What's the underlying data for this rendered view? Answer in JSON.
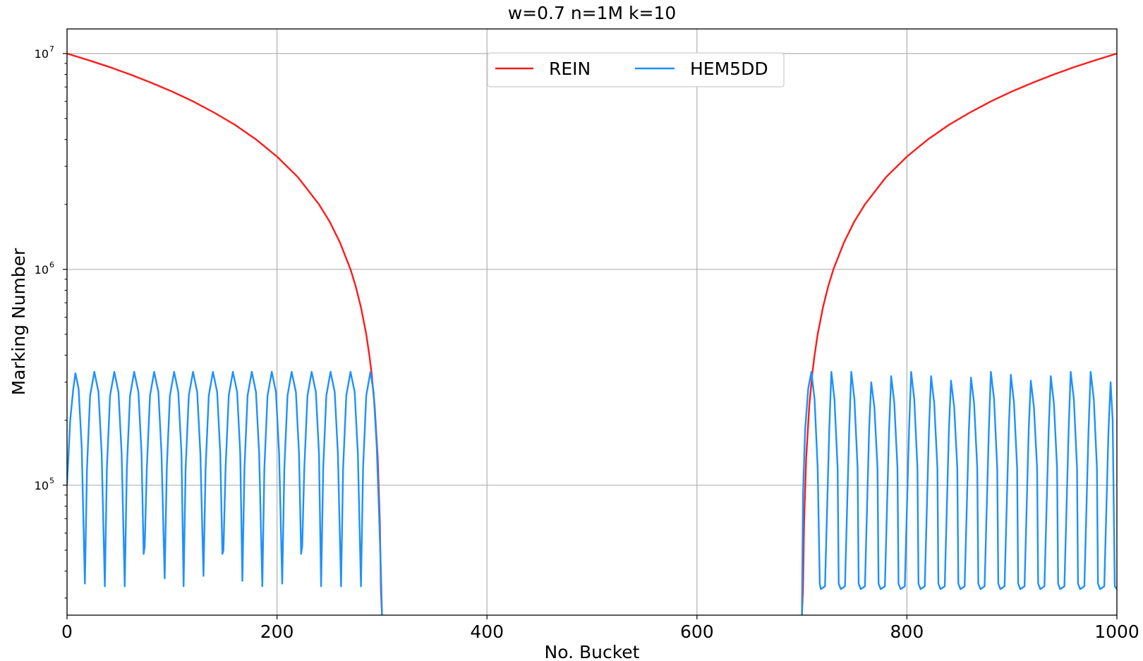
{
  "chart_data": {
    "type": "line",
    "title": "w=0.7 n=1M k=10",
    "xlabel": "No. Bucket",
    "ylabel": "Marking Number",
    "xlim": [
      0,
      1000
    ],
    "ylim": [
      25000,
      13000000
    ],
    "yscale": "log",
    "grid": true,
    "legend": {
      "position": "top-center",
      "entries": [
        "REIN",
        "HEM5DD"
      ]
    },
    "x_ticks": [
      {
        "value": 0,
        "label": "0"
      },
      {
        "value": 200,
        "label": "200"
      },
      {
        "value": 400,
        "label": "400"
      },
      {
        "value": 600,
        "label": "600"
      },
      {
        "value": 800,
        "label": "800"
      },
      {
        "value": 1000,
        "label": "1000"
      }
    ],
    "y_ticks": [
      {
        "value": 100000,
        "base": "10",
        "exp": "5"
      },
      {
        "value": 1000000,
        "base": "10",
        "exp": "6"
      },
      {
        "value": 10000000,
        "base": "10",
        "exp": "7"
      }
    ],
    "series": [
      {
        "name": "REIN",
        "color": "#ff1a1a",
        "segments": [
          [
            [
              0,
              10000000
            ],
            [
              20,
              9330000
            ],
            [
              40,
              8670000
            ],
            [
              60,
              8000000
            ],
            [
              80,
              7330000
            ],
            [
              100,
              6670000
            ],
            [
              120,
              6000000
            ],
            [
              140,
              5330000
            ],
            [
              160,
              4670000
            ],
            [
              180,
              4000000
            ],
            [
              200,
              3330000
            ],
            [
              220,
              2670000
            ],
            [
              240,
              2000000
            ],
            [
              250,
              1670000
            ],
            [
              260,
              1330000
            ],
            [
              270,
              1000000
            ],
            [
              275,
              833000
            ],
            [
              280,
              667000
            ],
            [
              285,
              500000
            ],
            [
              288,
              400000
            ],
            [
              290,
              333000
            ],
            [
              293,
              233000
            ],
            [
              296,
              133000
            ],
            [
              298,
              67000
            ],
            [
              299,
              33000
            ],
            [
              300,
              25000
            ]
          ],
          [
            [
              700,
              25000
            ],
            [
              701,
              33000
            ],
            [
              702,
              67000
            ],
            [
              704,
              133000
            ],
            [
              707,
              233000
            ],
            [
              710,
              333000
            ],
            [
              712,
              400000
            ],
            [
              715,
              500000
            ],
            [
              720,
              667000
            ],
            [
              725,
              833000
            ],
            [
              730,
              1000000
            ],
            [
              740,
              1330000
            ],
            [
              750,
              1670000
            ],
            [
              760,
              2000000
            ],
            [
              780,
              2670000
            ],
            [
              800,
              3330000
            ],
            [
              820,
              4000000
            ],
            [
              840,
              4670000
            ],
            [
              860,
              5330000
            ],
            [
              880,
              6000000
            ],
            [
              900,
              6670000
            ],
            [
              920,
              7330000
            ],
            [
              940,
              8000000
            ],
            [
              960,
              8670000
            ],
            [
              980,
              9330000
            ],
            [
              1000,
              10000000
            ]
          ]
        ]
      },
      {
        "name": "HEM5DD",
        "color": "#1e90ff",
        "segments": [
          [
            [
              0,
              100000
            ],
            [
              3,
              200000
            ],
            [
              6,
              280000
            ],
            [
              8,
              330000
            ],
            [
              11,
              280000
            ],
            [
              14,
              150000
            ],
            [
              17,
              35000
            ],
            [
              19,
              120000
            ],
            [
              22,
              260000
            ],
            [
              26,
              335000
            ],
            [
              30,
              270000
            ],
            [
              33,
              140000
            ],
            [
              36,
              34000
            ],
            [
              38,
              120000
            ],
            [
              41,
              260000
            ],
            [
              45,
              335000
            ],
            [
              49,
              270000
            ],
            [
              52,
              140000
            ],
            [
              55,
              34000
            ],
            [
              57,
              120000
            ],
            [
              60,
              260000
            ],
            [
              64,
              335000
            ],
            [
              68,
              270000
            ],
            [
              71,
              140000
            ],
            [
              73,
              48000
            ],
            [
              74,
              52000
            ],
            [
              76,
              120000
            ],
            [
              79,
              260000
            ],
            [
              83,
              335000
            ],
            [
              87,
              270000
            ],
            [
              90,
              140000
            ],
            [
              93,
              37000
            ],
            [
              95,
              120000
            ],
            [
              98,
              260000
            ],
            [
              102,
              335000
            ],
            [
              106,
              270000
            ],
            [
              109,
              140000
            ],
            [
              111,
              34000
            ],
            [
              113,
              120000
            ],
            [
              116,
              260000
            ],
            [
              120,
              335000
            ],
            [
              124,
              270000
            ],
            [
              127,
              140000
            ],
            [
              130,
              38000
            ],
            [
              132,
              120000
            ],
            [
              135,
              260000
            ],
            [
              139,
              335000
            ],
            [
              143,
              270000
            ],
            [
              146,
              140000
            ],
            [
              148,
              48000
            ],
            [
              149,
              50000
            ],
            [
              151,
              120000
            ],
            [
              154,
              260000
            ],
            [
              158,
              335000
            ],
            [
              162,
              270000
            ],
            [
              165,
              140000
            ],
            [
              167,
              36000
            ],
            [
              169,
              120000
            ],
            [
              172,
              260000
            ],
            [
              176,
              335000
            ],
            [
              180,
              270000
            ],
            [
              183,
              140000
            ],
            [
              186,
              34000
            ],
            [
              188,
              120000
            ],
            [
              191,
              260000
            ],
            [
              195,
              335000
            ],
            [
              199,
              270000
            ],
            [
              202,
              140000
            ],
            [
              205,
              35000
            ],
            [
              207,
              120000
            ],
            [
              210,
              260000
            ],
            [
              214,
              335000
            ],
            [
              218,
              270000
            ],
            [
              221,
              140000
            ],
            [
              223,
              48000
            ],
            [
              224,
              52000
            ],
            [
              226,
              120000
            ],
            [
              229,
              260000
            ],
            [
              233,
              335000
            ],
            [
              237,
              270000
            ],
            [
              240,
              140000
            ],
            [
              242,
              34000
            ],
            [
              244,
              120000
            ],
            [
              247,
              260000
            ],
            [
              251,
              335000
            ],
            [
              255,
              270000
            ],
            [
              258,
              140000
            ],
            [
              261,
              34000
            ],
            [
              263,
              120000
            ],
            [
              266,
              260000
            ],
            [
              270,
              335000
            ],
            [
              274,
              270000
            ],
            [
              277,
              140000
            ],
            [
              280,
              34000
            ],
            [
              282,
              120000
            ],
            [
              285,
              260000
            ],
            [
              289,
              335000
            ],
            [
              292,
              270000
            ],
            [
              295,
              150000
            ],
            [
              297,
              80000
            ],
            [
              299,
              40000
            ],
            [
              300,
              25000
            ]
          ],
          [
            [
              700,
              25000
            ],
            [
              701,
              90000
            ],
            [
              703,
              180000
            ],
            [
              706,
              280000
            ],
            [
              709,
              335000
            ],
            [
              712,
              250000
            ],
            [
              715,
              120000
            ],
            [
              717,
              35000
            ],
            [
              718,
              33000
            ],
            [
              722,
              34000
            ],
            [
              726,
              180000
            ],
            [
              728,
              335000
            ],
            [
              731,
              250000
            ],
            [
              734,
              120000
            ],
            [
              735,
              35000
            ],
            [
              737,
              33000
            ],
            [
              741,
              34000
            ],
            [
              745,
              180000
            ],
            [
              747,
              335000
            ],
            [
              750,
              250000
            ],
            [
              753,
              120000
            ],
            [
              754,
              35000
            ],
            [
              756,
              33000
            ],
            [
              760,
              34000
            ],
            [
              764,
              180000
            ],
            [
              766,
              300000
            ],
            [
              769,
              230000
            ],
            [
              772,
              120000
            ],
            [
              773,
              35000
            ],
            [
              775,
              33000
            ],
            [
              779,
              34000
            ],
            [
              783,
              180000
            ],
            [
              785,
              320000
            ],
            [
              788,
              240000
            ],
            [
              791,
              120000
            ],
            [
              792,
              35000
            ],
            [
              794,
              33000
            ],
            [
              798,
              34000
            ],
            [
              802,
              180000
            ],
            [
              804,
              335000
            ],
            [
              807,
              250000
            ],
            [
              810,
              120000
            ],
            [
              811,
              35000
            ],
            [
              813,
              33000
            ],
            [
              817,
              34000
            ],
            [
              821,
              180000
            ],
            [
              823,
              320000
            ],
            [
              826,
              240000
            ],
            [
              829,
              120000
            ],
            [
              830,
              35000
            ],
            [
              832,
              33000
            ],
            [
              836,
              34000
            ],
            [
              840,
              180000
            ],
            [
              842,
              305000
            ],
            [
              845,
              230000
            ],
            [
              848,
              120000
            ],
            [
              849,
              35000
            ],
            [
              851,
              33000
            ],
            [
              855,
              34000
            ],
            [
              859,
              180000
            ],
            [
              861,
              315000
            ],
            [
              864,
              240000
            ],
            [
              867,
              120000
            ],
            [
              868,
              35000
            ],
            [
              870,
              33000
            ],
            [
              874,
              34000
            ],
            [
              878,
              180000
            ],
            [
              880,
              335000
            ],
            [
              883,
              250000
            ],
            [
              886,
              120000
            ],
            [
              887,
              35000
            ],
            [
              889,
              33000
            ],
            [
              893,
              34000
            ],
            [
              897,
              180000
            ],
            [
              899,
              325000
            ],
            [
              902,
              240000
            ],
            [
              905,
              120000
            ],
            [
              906,
              35000
            ],
            [
              908,
              33000
            ],
            [
              912,
              34000
            ],
            [
              916,
              180000
            ],
            [
              918,
              305000
            ],
            [
              921,
              230000
            ],
            [
              924,
              120000
            ],
            [
              925,
              35000
            ],
            [
              927,
              33000
            ],
            [
              931,
              34000
            ],
            [
              935,
              180000
            ],
            [
              937,
              320000
            ],
            [
              940,
              240000
            ],
            [
              943,
              120000
            ],
            [
              944,
              35000
            ],
            [
              946,
              33000
            ],
            [
              950,
              34000
            ],
            [
              954,
              180000
            ],
            [
              956,
              335000
            ],
            [
              959,
              250000
            ],
            [
              962,
              120000
            ],
            [
              963,
              35000
            ],
            [
              965,
              33000
            ],
            [
              969,
              34000
            ],
            [
              973,
              180000
            ],
            [
              975,
              335000
            ],
            [
              978,
              250000
            ],
            [
              981,
              120000
            ],
            [
              982,
              35000
            ],
            [
              984,
              33000
            ],
            [
              988,
              34000
            ],
            [
              992,
              180000
            ],
            [
              994,
              300000
            ],
            [
              996,
              200000
            ],
            [
              998,
              34000
            ],
            [
              1000,
              33000
            ]
          ]
        ]
      }
    ]
  }
}
